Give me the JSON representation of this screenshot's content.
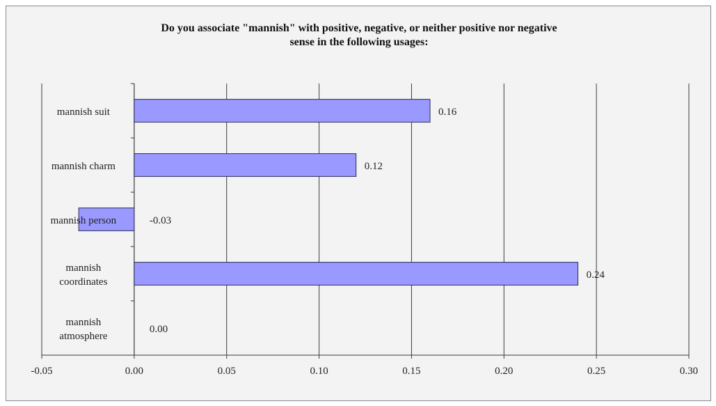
{
  "chart_data": {
    "type": "bar",
    "orientation": "horizontal",
    "title_lines": [
      "Do you associate \"mannish\" with positive, negative, or neither positive nor negative",
      "sense in the following usages:"
    ],
    "categories": [
      [
        "mannish suit"
      ],
      [
        "mannish charm"
      ],
      [
        "mannish person"
      ],
      [
        "mannish",
        "coordinates"
      ],
      [
        "mannish",
        "atmosphere"
      ]
    ],
    "values": [
      0.16,
      0.12,
      -0.03,
      0.24,
      0.0
    ],
    "data_labels": [
      "0.16",
      "0.12",
      "-0.03",
      "0.24",
      "0.00"
    ],
    "xlim": [
      -0.05,
      0.3
    ],
    "xticks": [
      -0.05,
      0.0,
      0.05,
      0.1,
      0.15,
      0.2,
      0.25,
      0.3
    ],
    "xtick_labels": [
      "-0.05",
      "0.00",
      "0.05",
      "0.10",
      "0.15",
      "0.20",
      "0.25",
      "0.30"
    ],
    "grid": "vertical",
    "bar_color": "#9999ff",
    "bar_edge": "#2a2a55",
    "xlabel": "",
    "ylabel": ""
  }
}
